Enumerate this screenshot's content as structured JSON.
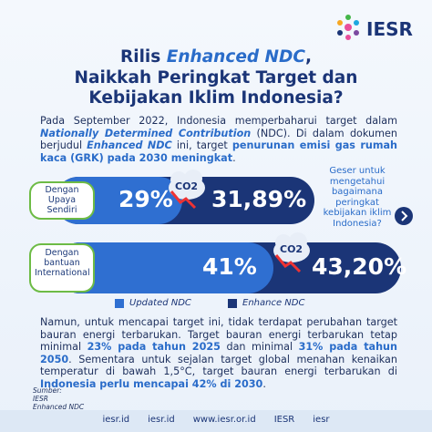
{
  "logo": "IESR",
  "title": {
    "line1": [
      "Rilis ",
      "Enhanced NDC",
      ","
    ],
    "line2": "Naikkah Peringkat Target dan",
    "line3": "Kebijakan Iklim Indonesia?"
  },
  "intro": [
    "Pada September 2022, Indonesia memperbaharui target dalam ",
    "Nationally Determined Contribution",
    " (NDC). Di dalam dokumen berjudul ",
    "Enhanced NDC",
    " ini, target ",
    "penurunan emisi gas rumah kaca (GRK) pada 2030 meningkat",
    "."
  ],
  "rows": [
    {
      "label": "Dengan Upaya Sendiri",
      "updated": "29%",
      "enhanced": "31,89%",
      "icon": "CO2"
    },
    {
      "label": "Dengan bantuan International",
      "updated": "41%",
      "enhanced": "43,20%",
      "icon": "CO2"
    }
  ],
  "side_note": "Geser untuk mengetahui bagaimana peringkat kebijakan iklim Indonesia?",
  "legend": [
    "Updated NDC",
    "Enhance NDC"
  ],
  "body": [
    "Namun, untuk mencapai target ini, tidak terdapat perubahan target bauran energi terbarukan. Target bauran energi terbarukan tetap minimal ",
    "23% pada tahun 2025",
    " dan minimal ",
    "31% pada tahun 2050",
    ". Sementara untuk sejalan target global menahan kenaikan temperatur di bawah 1,5°C, target bauran energi terbarukan di ",
    "Indonesia perlu mencapai 42% di 2030",
    "."
  ],
  "source": {
    "heading": "Sumber:",
    "items": [
      "IESR",
      "Enhanced NDC"
    ]
  },
  "footer": [
    "iesr.id",
    "iesr.id",
    "www.iesr.or.id",
    "IESR",
    "iesr"
  ]
}
